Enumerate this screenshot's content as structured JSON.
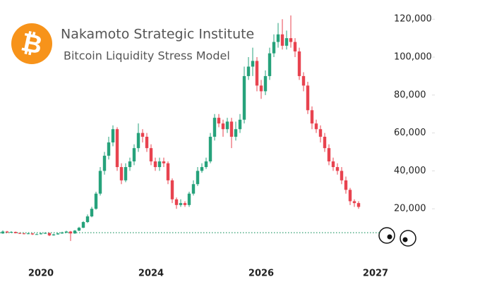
{
  "chart_data": {
    "type": "candlestick",
    "title": "Nakamoto Strategic Institute",
    "subtitle": "Bitcoin Liquidity Stress Model",
    "logo": "₿",
    "up_color": "#26a27b",
    "down_color": "#e8434f",
    "ylim": [
      0,
      125000
    ],
    "yticks": [
      {
        "value": 20000,
        "label": "20,000"
      },
      {
        "value": 40000,
        "label": "40,000"
      },
      {
        "value": 60000,
        "label": "60,000"
      },
      {
        "value": 80000,
        "label": "80,000"
      },
      {
        "value": 100000,
        "label": "100,000"
      },
      {
        "value": 120000,
        "label": "120,000"
      }
    ],
    "reference_line": {
      "value": 7400,
      "color": "#2e9e6e"
    },
    "categories": [
      null,
      null,
      null,
      null,
      null,
      null,
      null,
      null,
      null,
      "2020",
      null,
      null,
      null,
      null,
      null,
      null,
      null,
      null,
      null,
      null,
      null,
      null,
      null,
      null,
      null,
      null,
      null,
      null,
      null,
      null,
      null,
      null,
      null,
      null,
      null,
      "2024",
      null,
      null,
      null,
      null,
      null,
      null,
      null,
      null,
      null,
      null,
      null,
      null,
      null,
      null,
      null,
      null,
      null,
      null,
      null,
      null,
      null,
      null,
      null,
      null,
      null,
      "2026",
      null,
      null,
      null,
      null,
      null,
      null,
      null,
      null,
      null,
      null,
      null,
      null,
      null,
      null,
      null,
      null,
      null,
      null,
      null,
      null,
      null,
      null,
      null,
      null,
      null,
      null,
      "2027"
    ],
    "open": [
      7000,
      8000,
      7500,
      7800,
      7200,
      7000,
      6800,
      7000,
      6500,
      6600,
      7000,
      7200,
      6000,
      6500,
      7000,
      7500,
      8000,
      7000,
      8500,
      10000,
      13000,
      16000,
      20000,
      28000,
      40000,
      48000,
      55000,
      62000,
      42000,
      35000,
      42000,
      45000,
      52000,
      60000,
      58000,
      52000,
      45000,
      42000,
      45000,
      44000,
      35000,
      25000,
      22000,
      23000,
      22000,
      28000,
      33000,
      40000,
      42000,
      45000,
      58000,
      68000,
      65000,
      62000,
      66000,
      58000,
      62000,
      67000,
      90000,
      95000,
      98000,
      85000,
      82000,
      90000,
      102000,
      108000,
      112000,
      106000,
      110000,
      108000,
      103000,
      90000,
      85000,
      72000,
      65000,
      62000,
      58000,
      52000,
      45000,
      42000,
      40000,
      35000,
      30000,
      24000,
      23000,
      null,
      null,
      null,
      null
    ],
    "high": [
      8600,
      8300,
      8200,
      8000,
      7500,
      7300,
      7400,
      7200,
      7000,
      7400,
      7600,
      7400,
      6900,
      7300,
      7900,
      8400,
      8300,
      8800,
      10500,
      13500,
      17000,
      21000,
      29000,
      42000,
      50000,
      58000,
      64000,
      63000,
      44000,
      44000,
      47000,
      54000,
      65000,
      62000,
      60000,
      54000,
      47000,
      47000,
      47000,
      45000,
      36000,
      26000,
      25000,
      24000,
      29000,
      35000,
      42000,
      44000,
      47000,
      60000,
      70000,
      70000,
      67000,
      68000,
      68000,
      66000,
      70000,
      95000,
      100000,
      105000,
      100000,
      88000,
      93000,
      105000,
      112000,
      118000,
      120000,
      114000,
      122000,
      110000,
      105000,
      92000,
      87000,
      74000,
      67000,
      64000,
      60000,
      54000,
      47000,
      44000,
      42000,
      37000,
      31000,
      25000,
      24000,
      null,
      null,
      null,
      null
    ],
    "low": [
      6800,
      7200,
      7300,
      7000,
      6700,
      6500,
      6600,
      6200,
      6300,
      6400,
      6800,
      5600,
      5800,
      6300,
      6800,
      7200,
      3000,
      6800,
      8200,
      9800,
      12500,
      15500,
      19500,
      27000,
      38000,
      46000,
      53000,
      40000,
      33000,
      34000,
      40000,
      43000,
      50000,
      55000,
      50000,
      43000,
      40000,
      40000,
      42000,
      33000,
      23000,
      20000,
      21000,
      21000,
      21000,
      27000,
      32000,
      39000,
      41000,
      44000,
      56000,
      63000,
      58000,
      60000,
      52000,
      56000,
      60000,
      65000,
      88000,
      90000,
      82000,
      78000,
      80000,
      88000,
      100000,
      105000,
      104000,
      104000,
      105000,
      100000,
      88000,
      82000,
      70000,
      62000,
      60000,
      55000,
      50000,
      43000,
      40000,
      38000,
      33000,
      28000,
      22000,
      21000,
      20000,
      null,
      null,
      null,
      null
    ],
    "close": [
      8000,
      7500,
      7800,
      7200,
      7000,
      6800,
      7000,
      6500,
      6600,
      7000,
      7200,
      6000,
      6500,
      7000,
      7500,
      8000,
      7000,
      8500,
      10000,
      13000,
      16000,
      20000,
      28000,
      40000,
      48000,
      55000,
      62000,
      42000,
      35000,
      42000,
      45000,
      52000,
      60000,
      58000,
      52000,
      45000,
      42000,
      45000,
      44000,
      35000,
      25000,
      22000,
      23000,
      22000,
      28000,
      33000,
      40000,
      42000,
      45000,
      58000,
      68000,
      65000,
      62000,
      66000,
      58000,
      62000,
      67000,
      90000,
      95000,
      98000,
      85000,
      82000,
      90000,
      102000,
      108000,
      112000,
      106000,
      110000,
      108000,
      103000,
      90000,
      85000,
      72000,
      65000,
      62000,
      58000,
      52000,
      45000,
      42000,
      40000,
      35000,
      30000,
      24000,
      23000,
      21000,
      null,
      null,
      null,
      null
    ]
  }
}
